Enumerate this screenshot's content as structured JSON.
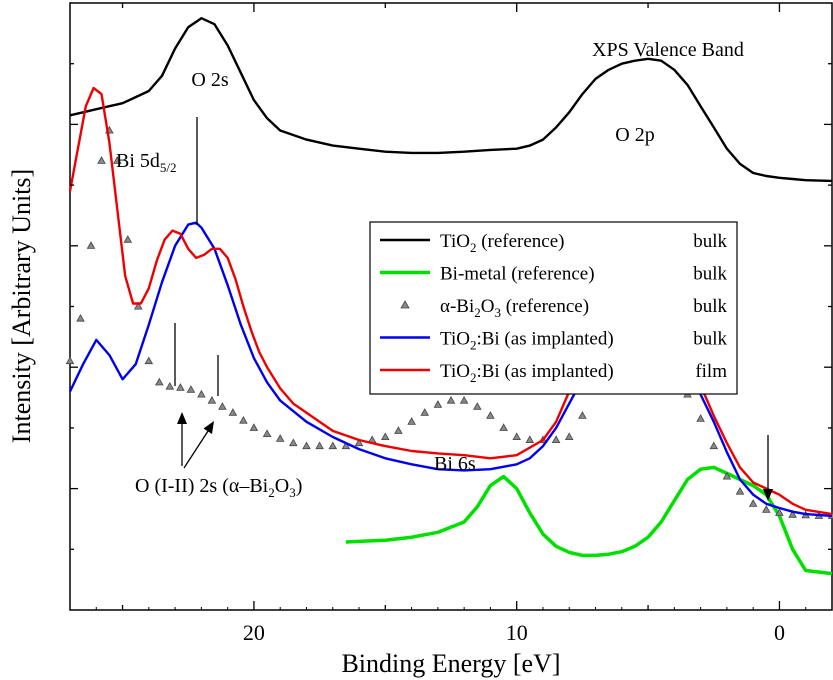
{
  "chart_data": {
    "type": "line",
    "title": "XPS Valence Band",
    "xlabel": "Binding Energy [eV]",
    "ylabel": "Intensity [Arbitrary Units]",
    "x_reversed": true,
    "xlim": [
      27,
      -2
    ],
    "ylim": [
      0,
      100
    ],
    "y_tick_labels": false,
    "x_ticks": [
      {
        "value": 20,
        "label": "20"
      },
      {
        "value": 10,
        "label": "10"
      },
      {
        "value": 0,
        "label": "0"
      }
    ],
    "grid": false,
    "legend_position": "center-right",
    "series": [
      {
        "name": "TiO2 (reference) bulk",
        "legend": {
          "main": "TiO",
          "sub": "2",
          "rest": "(reference)",
          "tag": "bulk"
        },
        "style": "line",
        "color": "#000000",
        "x": [
          27,
          26.5,
          26,
          25.5,
          25,
          24.5,
          24,
          23.5,
          23,
          22.5,
          22,
          21.5,
          21,
          20.5,
          20,
          19.5,
          19,
          18,
          17,
          16,
          15,
          14,
          13,
          12,
          11,
          10,
          9.5,
          9,
          8.5,
          8,
          7.5,
          7,
          6.5,
          6,
          5.5,
          5,
          4.5,
          4,
          3.5,
          3,
          2.5,
          2,
          1.5,
          1,
          0.5,
          0,
          -0.5,
          -1,
          -2
        ],
        "y": [
          81.5,
          82,
          82.5,
          83,
          83.5,
          84.5,
          85.5,
          88,
          92.5,
          96,
          97.5,
          96.5,
          93,
          88.5,
          84,
          81,
          79,
          77.5,
          76.5,
          76,
          75.5,
          75.3,
          75.3,
          75.5,
          75.8,
          76,
          76.5,
          77.5,
          79.5,
          82,
          85,
          87.5,
          89,
          90,
          90.5,
          90.8,
          90.5,
          89,
          86.5,
          83,
          79.5,
          76,
          73.5,
          72,
          71.5,
          71.2,
          71,
          70.8,
          70.7
        ]
      },
      {
        "name": "Bi-metal (reference) bulk",
        "legend": {
          "main": "Bi-metal",
          "sub": "",
          "rest": "(reference)",
          "tag": "bulk"
        },
        "style": "line",
        "color": "#00e000",
        "x": [
          16.5,
          16,
          15,
          14,
          13,
          12,
          11.5,
          11,
          10.5,
          10,
          9.5,
          9,
          8.5,
          8,
          7.5,
          7,
          6.5,
          6,
          5.5,
          5,
          4.5,
          4,
          3.5,
          3,
          2.5,
          2,
          1.5,
          1,
          0.5,
          0,
          -0.5,
          -1,
          -2
        ],
        "y": [
          11.2,
          11.3,
          11.5,
          12,
          12.8,
          14.5,
          17,
          20.5,
          22,
          20,
          16,
          12.5,
          10.5,
          9.5,
          9,
          9,
          9.2,
          9.6,
          10.5,
          12,
          14.5,
          18,
          21.5,
          23.2,
          23.5,
          22.5,
          21.5,
          20.5,
          19,
          15.5,
          10,
          6.5,
          6
        ]
      },
      {
        "name": "α-Bi2O3 (reference) bulk",
        "legend": {
          "main": "α-Bi",
          "sub": "2",
          "mid": "O",
          "sub2": "3",
          "rest": "(reference)",
          "tag": "bulk"
        },
        "style": "markers",
        "color": "#555555",
        "x": [
          27,
          26.6,
          26.2,
          25.8,
          25.5,
          25.2,
          24.8,
          24.4,
          24,
          23.6,
          23.2,
          22.8,
          22.4,
          22,
          21.6,
          21.2,
          20.8,
          20.4,
          20,
          19.5,
          19,
          18.5,
          18,
          17.5,
          17,
          16.5,
          16,
          15.5,
          15,
          14.5,
          14,
          13.5,
          13,
          12.5,
          12,
          11.5,
          11,
          10.5,
          10,
          9.5,
          9,
          8.5,
          8,
          7.5,
          7,
          6.5,
          6,
          5.5,
          5,
          4.5,
          4,
          3.5,
          3,
          2.5,
          2,
          1.5,
          1,
          0.5,
          0,
          -0.5,
          -1,
          -1.5,
          -2
        ],
        "y": [
          41,
          48,
          60,
          74,
          79,
          74,
          61,
          50,
          41,
          37.5,
          36.8,
          36.6,
          36.3,
          35.5,
          34.5,
          33.5,
          32.5,
          31.2,
          30,
          29,
          28.2,
          27.5,
          27,
          27,
          27,
          27,
          27.5,
          28,
          28.5,
          29.5,
          31,
          32.5,
          33.8,
          34.5,
          34.5,
          33.5,
          32,
          30,
          28.5,
          28,
          28,
          28,
          28.5,
          32,
          39,
          43,
          44.5,
          45,
          44.8,
          43.5,
          40,
          35.5,
          31.5,
          27,
          22,
          19.5,
          17.5,
          16.5,
          16,
          15.7,
          15.6,
          15.5,
          15.5
        ]
      },
      {
        "name": "TiO2:Bi (as implanted) bulk",
        "legend": {
          "main": "TiO",
          "sub": "2",
          "rest": ":Bi (as implanted)",
          "tag": "bulk"
        },
        "style": "line",
        "color": "#0000ee",
        "x": [
          27,
          26.5,
          26,
          25.5,
          25,
          24.5,
          24,
          23.5,
          23,
          22.5,
          22.2,
          22,
          21.5,
          21,
          20.5,
          20,
          19.5,
          19,
          18,
          17,
          16,
          15,
          14,
          13,
          12,
          11,
          10,
          9.5,
          9,
          8.5,
          8,
          7.5,
          7,
          6.5,
          6,
          5.5,
          5,
          4.5,
          4,
          3.5,
          3,
          2.5,
          2,
          1.5,
          1,
          0.5,
          0,
          -0.5,
          -1,
          -2
        ],
        "y": [
          36,
          40.5,
          44.5,
          42,
          38,
          40.5,
          47,
          54,
          60,
          63.5,
          63.8,
          63,
          59.5,
          53.5,
          47,
          41.5,
          37.5,
          34.5,
          31,
          28.5,
          26.5,
          25,
          24,
          23.2,
          23,
          23.2,
          24,
          25,
          27,
          30,
          34,
          38,
          41,
          42.5,
          43.2,
          43.6,
          43.8,
          43.3,
          42,
          39.5,
          35.5,
          31,
          26,
          21.5,
          19,
          17.5,
          16.8,
          16.2,
          15.8,
          15.5
        ]
      },
      {
        "name": "TiO2:Bi (as implanted) film",
        "legend": {
          "main": "TiO",
          "sub": "2",
          "rest": ":Bi (as implanted)",
          "tag": "film"
        },
        "style": "line",
        "color": "#ee0000",
        "x": [
          27,
          26.7,
          26.4,
          26.1,
          25.8,
          25.5,
          25.2,
          24.9,
          24.6,
          24.3,
          24,
          23.7,
          23.4,
          23.1,
          22.8,
          22.5,
          22.2,
          21.9,
          21.6,
          21.3,
          21,
          20.7,
          20.4,
          20.1,
          19.8,
          19.5,
          19,
          18.5,
          18,
          17,
          16,
          15,
          14,
          13,
          12,
          11,
          10,
          9,
          8.5,
          8,
          7.5,
          7,
          6.5,
          6,
          5.5,
          5,
          4.5,
          4,
          3.5,
          3,
          2.5,
          2,
          1.5,
          1,
          0.5,
          0,
          -0.5,
          -1,
          -2
        ],
        "y": [
          69,
          76,
          83,
          86,
          85,
          77,
          66,
          55,
          50.5,
          50.5,
          53,
          57.5,
          61,
          62.5,
          62,
          59.5,
          58,
          58.5,
          59.5,
          59.5,
          58,
          54.5,
          50,
          46,
          42.5,
          40,
          36.5,
          34,
          32.5,
          29.5,
          28,
          27,
          26.2,
          25.8,
          25.5,
          25,
          25.5,
          28,
          31,
          36,
          41,
          44,
          45.2,
          45.5,
          45.4,
          45,
          44.5,
          43.5,
          41,
          37,
          32,
          27.5,
          23.5,
          21,
          20,
          19,
          17.5,
          16.5,
          15.8
        ]
      }
    ],
    "annotations": [
      {
        "id": "title",
        "text": "XPS Valence Band"
      },
      {
        "id": "o2s",
        "text": "O 2s"
      },
      {
        "id": "o2p",
        "text": "O 2p"
      },
      {
        "id": "bi5d",
        "main": "Bi 5d",
        "sub": "5/2"
      },
      {
        "id": "bi6s",
        "text": "Bi 6s"
      },
      {
        "id": "o12s",
        "main": "O (I-II) 2s (α–Bi",
        "sub": "2",
        "mid": "O",
        "sub2": "3",
        "tail": ")"
      }
    ]
  }
}
